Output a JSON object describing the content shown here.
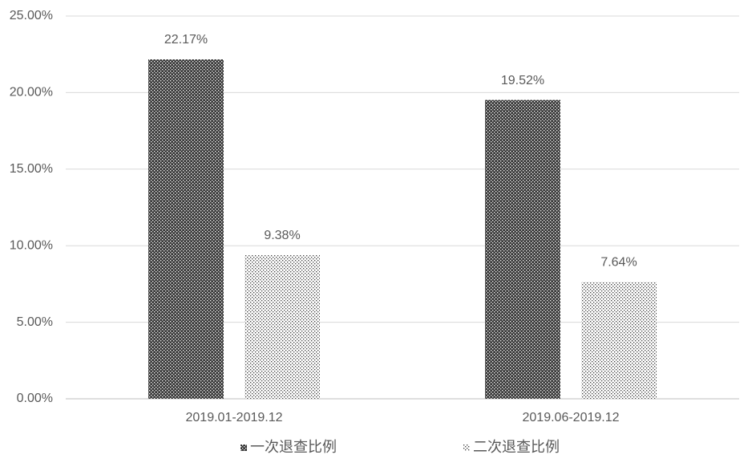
{
  "chart_data": {
    "type": "bar",
    "categories": [
      "2019.01-2019.12",
      "2019.06-2019.12"
    ],
    "series": [
      {
        "name": "一次退查比例",
        "color": "#3a3a3a",
        "pattern": "crosshatch",
        "values": [
          22.17,
          19.52
        ],
        "value_labels": [
          "22.17%",
          "19.52%"
        ]
      },
      {
        "name": "二次退查比例",
        "color": "#3a3a3a",
        "pattern": "dots",
        "values": [
          9.38,
          7.64
        ],
        "value_labels": [
          "9.38%",
          "7.64%"
        ]
      }
    ],
    "ylim": [
      0,
      25
    ],
    "yticks": [
      {
        "value": 0,
        "label": "0.00%"
      },
      {
        "value": 5,
        "label": "5.00%"
      },
      {
        "value": 10,
        "label": "10.00%"
      },
      {
        "value": 15,
        "label": "15.00%"
      },
      {
        "value": 20,
        "label": "20.00%"
      },
      {
        "value": 25,
        "label": "25.00%"
      }
    ],
    "grid": true,
    "legend": "bottom"
  }
}
